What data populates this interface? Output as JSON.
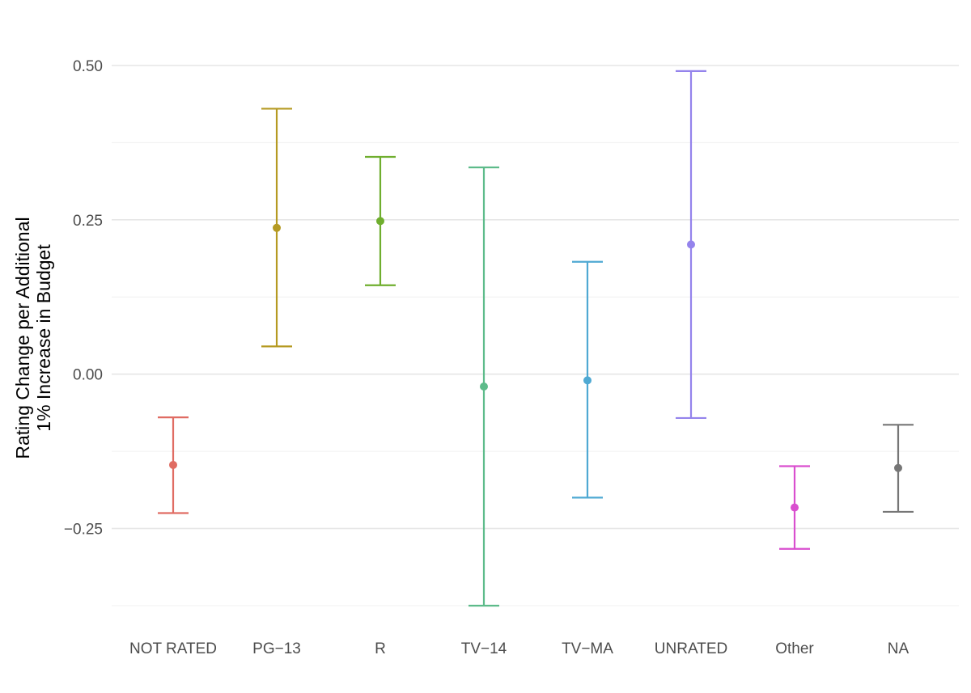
{
  "chart_data": {
    "type": "errorbar",
    "title": "",
    "xlabel": "",
    "ylabel": [
      "Rating Change per Additional",
      "1% Increase in Budget"
    ],
    "ylim": [
      -0.375,
      0.5
    ],
    "yticks": [
      0.5,
      0.25,
      0.0,
      -0.25
    ],
    "ytick_labels": [
      "0.50",
      "0.25",
      "0.00",
      "−0.25"
    ],
    "grid": true,
    "legend": "none",
    "categories": [
      "NOT RATED",
      "PG−13",
      "R",
      "TV−14",
      "TV−MA",
      "UNRATED",
      "Other",
      "NA"
    ],
    "points": [
      {
        "category": "NOT RATED",
        "estimate": -0.147,
        "lower": -0.225,
        "upper": -0.07,
        "color": "#e06c63"
      },
      {
        "category": "PG−13",
        "estimate": 0.237,
        "lower": 0.045,
        "upper": 0.43,
        "color": "#b59a22"
      },
      {
        "category": "R",
        "estimate": 0.248,
        "lower": 0.144,
        "upper": 0.352,
        "color": "#6fae2e"
      },
      {
        "category": "TV−14",
        "estimate": -0.02,
        "lower": -0.375,
        "upper": 0.335,
        "color": "#5dbb8a"
      },
      {
        "category": "TV−MA",
        "estimate": -0.01,
        "lower": -0.2,
        "upper": 0.182,
        "color": "#4fa9d3"
      },
      {
        "category": "UNRATED",
        "estimate": 0.21,
        "lower": -0.071,
        "upper": 0.491,
        "color": "#9483ec"
      },
      {
        "category": "Other",
        "estimate": -0.216,
        "lower": -0.283,
        "upper": -0.149,
        "color": "#d94fcf"
      },
      {
        "category": "NA",
        "estimate": -0.152,
        "lower": -0.223,
        "upper": -0.082,
        "color": "#767676"
      }
    ]
  }
}
